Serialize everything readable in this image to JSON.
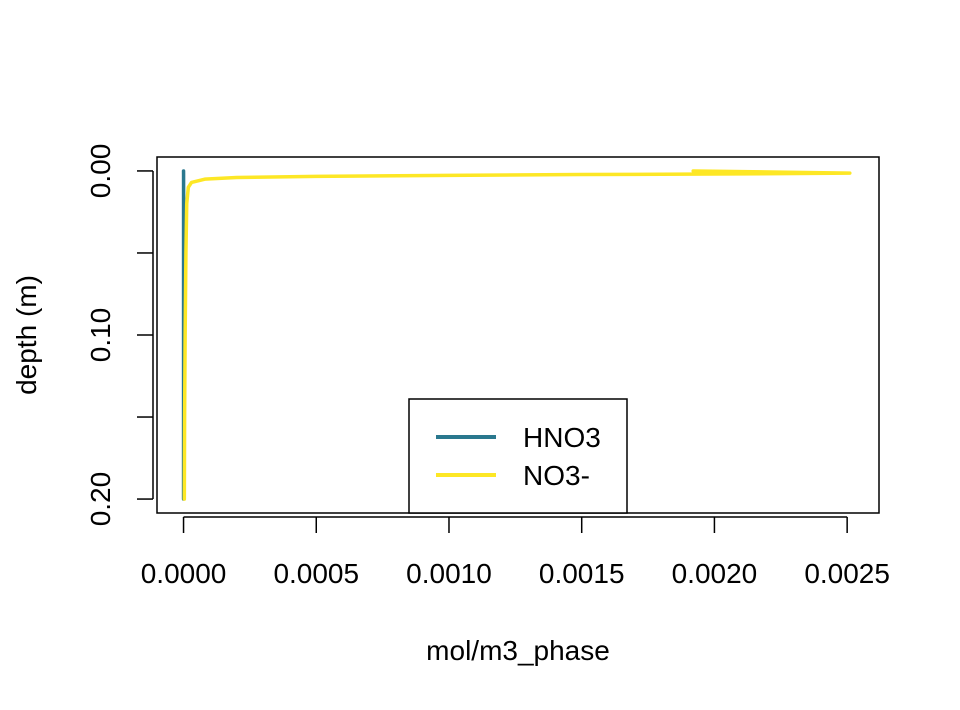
{
  "chart_data": {
    "type": "line",
    "title": "",
    "xlabel": "mol/m3_phase",
    "ylabel": "depth (m)",
    "xlim": [
      -0.0001,
      0.00262
    ],
    "ylim": [
      0.2085,
      -0.0085
    ],
    "y_reversed": true,
    "x_ticks": [
      0.0,
      0.0005,
      0.001,
      0.0015,
      0.002,
      0.0025
    ],
    "x_tick_labels": [
      "0.0000",
      "0.0005",
      "0.0010",
      "0.0015",
      "0.0020",
      "0.0025"
    ],
    "y_ticks": [
      0.0,
      0.05,
      0.1,
      0.15,
      0.2
    ],
    "y_tick_labels": [
      "0.00",
      "",
      "0.10",
      "",
      "0.20"
    ],
    "grid": false,
    "legend": {
      "position": "bottom-center",
      "entries": [
        "HNO3",
        "NO3-"
      ]
    },
    "series": [
      {
        "name": "HNO3",
        "color": "#2A788E",
        "points": [
          [
            0.0,
            0.0
          ],
          [
            1e-07,
            0.002
          ],
          [
            1e-07,
            0.05
          ],
          [
            1e-07,
            0.1
          ],
          [
            1e-07,
            0.15
          ],
          [
            1e-07,
            0.2
          ]
        ]
      },
      {
        "name": "NO3-",
        "color": "#FDE725",
        "points": [
          [
            0.00192,
            0.0
          ],
          [
            0.00251,
            0.0013
          ],
          [
            0.0021,
            0.0018
          ],
          [
            0.0015,
            0.0022
          ],
          [
            0.001,
            0.0027
          ],
          [
            0.0005,
            0.0033
          ],
          [
            0.0002,
            0.004
          ],
          [
            8e-05,
            0.005
          ],
          [
            3e-05,
            0.007
          ],
          [
            1.8e-05,
            0.01
          ],
          [
            1.2e-05,
            0.02
          ],
          [
            9e-06,
            0.05
          ],
          [
            6e-06,
            0.1
          ],
          [
            4e-06,
            0.15
          ],
          [
            3e-06,
            0.2
          ]
        ]
      }
    ]
  }
}
